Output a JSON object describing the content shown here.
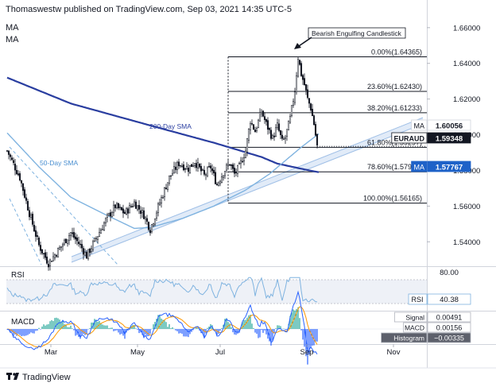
{
  "header": {
    "publisher": "Thomaswestw published on TradingView.com, Sep 03, 2021 14:35 UTC-5"
  },
  "indicator_labels": [
    "MA",
    "MA"
  ],
  "footer": {
    "brand": "TradingView"
  },
  "colors": {
    "up": "#ffffff",
    "down": "#131722",
    "ma200": "#2a3ea0",
    "ma50": "#7fb3e0",
    "fib": "#131722",
    "trend": "#c9dbf2",
    "macd_line": "#2962ff",
    "signal_line": "#ff9800",
    "hist_pos": "#26a69a",
    "hist_neg": "#2962ff",
    "label_bg": "#1e62c8"
  },
  "chart_data": [
    {
      "type": "candlestick",
      "symbol": "EURAUD",
      "x_ticks": [
        "Mar",
        "May",
        "Jul",
        "Sep",
        "Nov"
      ],
      "y_ticks": [
        "1.66000",
        "1.64000",
        "1.62000",
        "1.60000",
        "1.58000",
        "1.56000",
        "1.54000"
      ],
      "ylim": [
        1.5272,
        1.6666
      ],
      "series": [
        {
          "name": "200-Day SMA",
          "anchors": [
            [
              0,
              1.632
            ],
            [
              40,
              1.6175
            ],
            [
              90,
              1.6052
            ],
            [
              130,
              1.5955
            ],
            [
              160,
              1.5875
            ],
            [
              170,
              1.5838
            ],
            [
              190,
              1.58
            ],
            [
              196,
              1.579
            ]
          ]
        },
        {
          "name": "50-Day SMA",
          "anchors": [
            [
              0,
              1.601
            ],
            [
              20,
              1.582
            ],
            [
              40,
              1.565
            ],
            [
              60,
              1.556
            ],
            [
              80,
              1.5475
            ],
            [
              90,
              1.548
            ],
            [
              110,
              1.553
            ],
            [
              130,
              1.56
            ],
            [
              150,
              1.569
            ],
            [
              165,
              1.578
            ],
            [
              175,
              1.5855
            ],
            [
              185,
              1.593
            ],
            [
              196,
              1.6005
            ]
          ]
        }
      ],
      "price_path": [
        [
          0,
          1.591
        ],
        [
          8,
          1.576
        ],
        [
          14,
          1.556
        ],
        [
          20,
          1.538
        ],
        [
          26,
          1.528
        ],
        [
          32,
          1.535
        ],
        [
          40,
          1.545
        ],
        [
          46,
          1.538
        ],
        [
          50,
          1.532
        ],
        [
          56,
          1.542
        ],
        [
          62,
          1.552
        ],
        [
          68,
          1.56
        ],
        [
          74,
          1.556
        ],
        [
          80,
          1.562
        ],
        [
          86,
          1.555
        ],
        [
          90,
          1.547
        ],
        [
          96,
          1.562
        ],
        [
          102,
          1.576
        ],
        [
          108,
          1.584
        ],
        [
          114,
          1.581
        ],
        [
          118,
          1.585
        ],
        [
          124,
          1.577
        ],
        [
          128,
          1.582
        ],
        [
          132,
          1.572
        ],
        [
          136,
          1.579
        ],
        [
          140,
          1.584
        ],
        [
          143,
          1.578
        ],
        [
          146,
          1.582
        ],
        [
          150,
          1.591
        ],
        [
          153,
          1.608
        ],
        [
          156,
          1.602
        ],
        [
          160,
          1.613
        ],
        [
          163,
          1.606
        ],
        [
          167,
          1.598
        ],
        [
          170,
          1.605
        ],
        [
          173,
          1.596
        ],
        [
          175,
          1.5985
        ],
        [
          178,
          1.609
        ],
        [
          181,
          1.625
        ],
        [
          183,
          1.6436
        ],
        [
          185,
          1.634
        ],
        [
          187,
          1.628
        ],
        [
          189,
          1.62
        ],
        [
          191,
          1.615
        ],
        [
          193,
          1.606
        ],
        [
          195,
          1.5935
        ]
      ],
      "fibonacci": [
        {
          "label": "0.00%(1.64365)",
          "value": 1.64365
        },
        {
          "label": "23.60%(1.62430)",
          "value": 1.6243
        },
        {
          "label": "38.20%(1.61233)",
          "value": 1.61233
        },
        {
          "label": "61.80%(1.59297)",
          "value": 1.59297
        },
        {
          "label": "78.60%(1.57920)",
          "value": 1.5792
        },
        {
          "label": "100.00%(1.56165)",
          "value": 1.56165
        }
      ],
      "price_labels": [
        {
          "name": "MA",
          "value": "1.60056"
        },
        {
          "name": "EURAUD",
          "value": "1.59348"
        },
        {
          "name": "MA",
          "value": "1.57767"
        }
      ],
      "annotations": [
        "200-Day SMA",
        "50-Day SMA",
        "Bearish Engulfing Candlestick"
      ]
    },
    {
      "type": "line",
      "name": "RSI",
      "y_ticks": [
        "80.00"
      ],
      "value": "40.38",
      "ylim": [
        0,
        100
      ]
    },
    {
      "type": "macd",
      "name": "MACD",
      "legend": [
        {
          "name": "Signal",
          "value": "0.00491"
        },
        {
          "name": "MACD",
          "value": "0.00156"
        },
        {
          "name": "Histogram",
          "value": "−0.00335"
        }
      ]
    }
  ]
}
